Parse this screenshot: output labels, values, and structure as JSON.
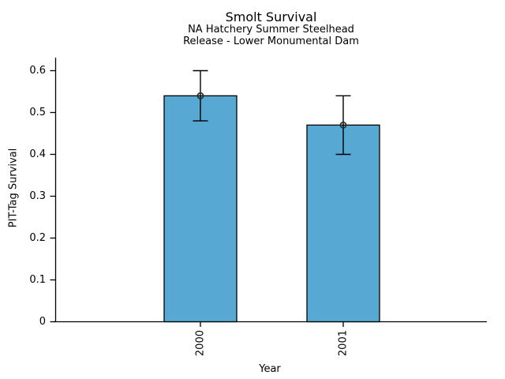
{
  "chart_data": {
    "type": "bar",
    "title": "Smolt Survival",
    "subtitle_line1": "NA Hatchery Summer Steelhead",
    "subtitle_line2": "Release - Lower Monumental Dam",
    "xlabel": "Year",
    "ylabel": "PIT-Tag Survival",
    "categories": [
      "2000",
      "2001"
    ],
    "values": [
      0.54,
      0.47
    ],
    "error_low": [
      0.48,
      0.4
    ],
    "error_high": [
      0.6,
      0.54
    ],
    "yticks": [
      0,
      0.1,
      0.2,
      0.3,
      0.4,
      0.5,
      0.6
    ],
    "ytick_labels": [
      "0",
      "0.1",
      "0.2",
      "0.3",
      "0.4",
      "0.5",
      "0.6"
    ],
    "ylim": [
      0,
      0.63
    ],
    "grid": false,
    "legend": null,
    "bar_color": "#58A8D4",
    "bar_edge_color": "#000000",
    "errorbar_color": "#000000",
    "marker": "open-circle",
    "marker_color": "#2b2b2b",
    "axis_color": "#000000",
    "background_color": "#ffffff"
  }
}
